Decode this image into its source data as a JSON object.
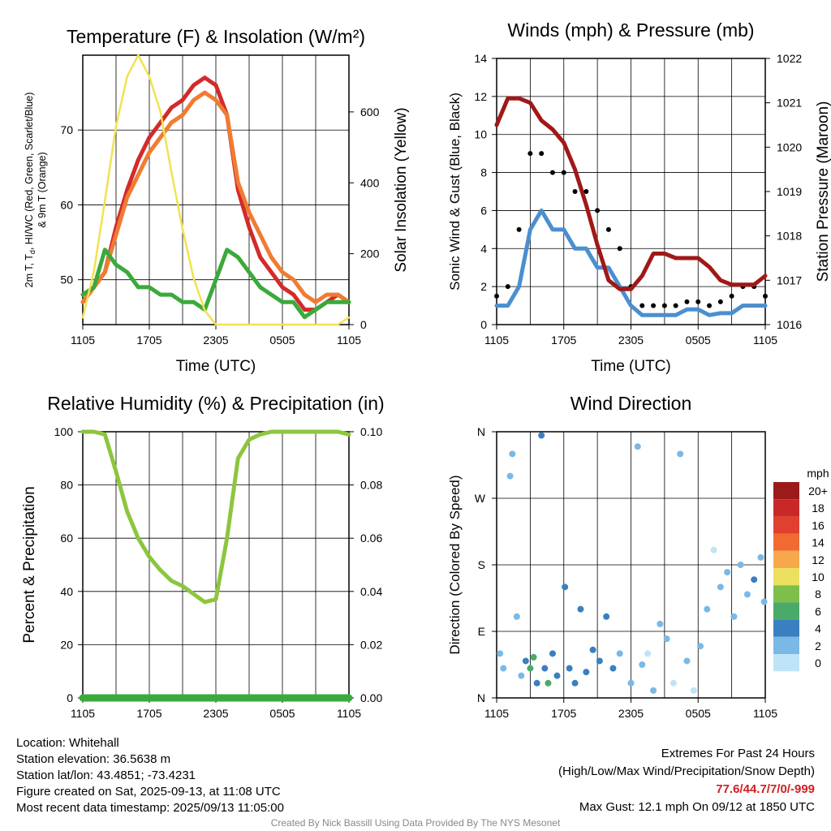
{
  "chart_data": [
    {
      "type": "line",
      "title": "Temperature (F) & Insolation (W/m²)",
      "ylabel": "2m T, Td, HI/WC (Red, Green, Scarlet/Blue) & 9m T (Orange)",
      "ylabel_line1": "2m T, T",
      "ylabel_sub": "d",
      "ylabel_line1_rest": ", HI/WC (Red, Green, Scarlet/Blue)",
      "ylabel_line2": "& 9m T (Orange)",
      "ylabel_right": "Solar Insolation (Yellow)",
      "xlabel": "Time (UTC)",
      "x_ticks": [
        "1105",
        "1705",
        "2305",
        "0505",
        "1105"
      ],
      "ylim": [
        44,
        80
      ],
      "y_ticks": [
        50,
        60,
        70
      ],
      "ylim_right": [
        0,
        760
      ],
      "y_ticks_right": [
        0,
        200,
        400,
        600
      ],
      "x_hours": [
        0,
        1,
        2,
        3,
        4,
        5,
        6,
        7,
        8,
        9,
        10,
        11,
        12,
        13,
        14,
        15,
        16,
        17,
        18,
        19,
        20,
        21,
        22,
        23,
        24
      ],
      "series": [
        {
          "name": "2m T",
          "color": "#d42a2a",
          "values": [
            47,
            49,
            51,
            57,
            62,
            66,
            69,
            71,
            73,
            74,
            76,
            77,
            76,
            72,
            62,
            57,
            53,
            51,
            49,
            48,
            46,
            46,
            47,
            48,
            47
          ]
        },
        {
          "name": "9m T",
          "color": "#f07b32",
          "values": [
            47,
            49,
            51,
            56,
            61,
            64,
            67,
            69,
            71,
            72,
            74,
            75,
            74,
            72,
            63,
            59,
            56,
            53,
            51,
            50,
            48,
            47,
            48,
            48,
            47
          ]
        },
        {
          "name": "Td",
          "color": "#3aaa3a",
          "values": [
            48,
            49,
            54,
            52,
            51,
            49,
            49,
            48,
            48,
            47,
            47,
            46,
            50,
            54,
            53,
            51,
            49,
            48,
            47,
            47,
            45,
            46,
            47,
            47,
            47
          ]
        },
        {
          "name": "Solar Insolation",
          "color": "#f2e250",
          "axis": "right",
          "values": [
            20,
            150,
            350,
            560,
            700,
            760,
            700,
            600,
            430,
            270,
            130,
            40,
            0,
            0,
            0,
            0,
            0,
            0,
            0,
            0,
            0,
            0,
            0,
            0,
            20
          ]
        }
      ]
    },
    {
      "type": "line",
      "title": "Winds (mph) & Pressure (mb)",
      "ylabel": "Sonic Wind & Gust (Blue, Black)",
      "ylabel_right": "Station Pressure (Maroon)",
      "xlabel": "Time (UTC)",
      "x_ticks": [
        "1105",
        "1705",
        "2305",
        "0505",
        "1105"
      ],
      "ylim": [
        0,
        14
      ],
      "y_ticks": [
        0,
        2,
        4,
        6,
        8,
        10,
        12,
        14
      ],
      "ylim_right": [
        1016,
        1022
      ],
      "y_ticks_right": [
        1016,
        1017,
        1018,
        1019,
        1020,
        1021,
        1022
      ],
      "x_hours": [
        0,
        1,
        2,
        3,
        4,
        5,
        6,
        7,
        8,
        9,
        10,
        11,
        12,
        13,
        14,
        15,
        16,
        17,
        18,
        19,
        20,
        21,
        22,
        23,
        24
      ],
      "series": [
        {
          "name": "Sonic Wind",
          "color": "#4a8fd0",
          "values": [
            1,
            1,
            2,
            5,
            6,
            5,
            5,
            4,
            4,
            3,
            3,
            2,
            1,
            0.5,
            0.5,
            0.5,
            0.5,
            0.8,
            0.8,
            0.5,
            0.6,
            0.6,
            1,
            1,
            1
          ]
        },
        {
          "name": "Gust",
          "color": "#000000",
          "values": [
            1.5,
            2,
            5,
            9,
            9,
            8,
            8,
            7,
            7,
            6,
            5,
            4,
            2,
            1,
            1,
            1,
            1,
            1.2,
            1.2,
            1,
            1.2,
            1.5,
            2,
            2,
            1.5
          ]
        },
        {
          "name": "Station Pressure",
          "color": "#a01818",
          "axis": "right",
          "values": [
            1020.5,
            1021.1,
            1021.1,
            1021.0,
            1020.6,
            1020.4,
            1020.1,
            1019.5,
            1018.7,
            1017.8,
            1017.0,
            1016.8,
            1016.8,
            1017.1,
            1017.6,
            1017.6,
            1017.5,
            1017.5,
            1017.5,
            1017.3,
            1017.0,
            1016.9,
            1016.9,
            1016.9,
            1017.1
          ]
        }
      ]
    },
    {
      "type": "line",
      "title": "Relative Humidity (%) & Precipitation (in)",
      "ylabel": "Percent & Precipitation",
      "x_ticks": [
        "1105",
        "1705",
        "2305",
        "0505",
        "1105"
      ],
      "ylim": [
        0,
        100
      ],
      "y_ticks": [
        0,
        20,
        40,
        60,
        80,
        100
      ],
      "ylim_right": [
        0,
        0.1
      ],
      "y_ticks_right": [
        "0.00",
        "0.02",
        "0.04",
        "0.06",
        "0.08",
        "0.10"
      ],
      "x_hours": [
        0,
        1,
        2,
        3,
        4,
        5,
        6,
        7,
        8,
        9,
        10,
        11,
        12,
        13,
        14,
        15,
        16,
        17,
        18,
        19,
        20,
        21,
        22,
        23,
        24
      ],
      "series": [
        {
          "name": "Relative Humidity",
          "color": "#8cc63f",
          "values": [
            100,
            100,
            99,
            85,
            70,
            60,
            53,
            48,
            44,
            42,
            39,
            36,
            37,
            60,
            90,
            97,
            99,
            100,
            100,
            100,
            100,
            100,
            100,
            100,
            99
          ]
        },
        {
          "name": "Precipitation",
          "color": "#3aaa3a",
          "axis": "right",
          "values": [
            0,
            0,
            0,
            0,
            0,
            0,
            0,
            0,
            0,
            0,
            0,
            0,
            0,
            0,
            0,
            0,
            0,
            0,
            0,
            0,
            0,
            0,
            0,
            0,
            0
          ]
        }
      ]
    },
    {
      "type": "scatter",
      "title": "Wind Direction",
      "ylabel": "Direction (Colored By Speed)",
      "x_ticks": [
        "1105",
        "1705",
        "2305",
        "0505",
        "1105"
      ],
      "y_ticks": [
        "N",
        "E",
        "S",
        "W",
        "N"
      ],
      "ylim": [
        0,
        360
      ],
      "legend_title": "mph",
      "legend_labels": [
        "20+",
        "18",
        "16",
        "14",
        "12",
        "10",
        "8",
        "6",
        "4",
        "2",
        "0"
      ],
      "legend_colors": [
        "#9b1b1b",
        "#c82828",
        "#e04030",
        "#f06a32",
        "#f7a84a",
        "#ece060",
        "#7dbf4a",
        "#4aaa6a",
        "#3a80c0",
        "#7ab8e6",
        "#bfe4f7"
      ],
      "points": [
        {
          "x": 0.3,
          "dir": 60,
          "speed": 1
        },
        {
          "x": 0.6,
          "dir": 40,
          "speed": 1
        },
        {
          "x": 1.2,
          "dir": 300,
          "speed": 1
        },
        {
          "x": 1.4,
          "dir": 330,
          "speed": 1
        },
        {
          "x": 1.8,
          "dir": 110,
          "speed": 1
        },
        {
          "x": 2.2,
          "dir": 30,
          "speed": 2
        },
        {
          "x": 2.6,
          "dir": 50,
          "speed": 4
        },
        {
          "x": 3.0,
          "dir": 40,
          "speed": 6
        },
        {
          "x": 3.3,
          "dir": 55,
          "speed": 6
        },
        {
          "x": 3.6,
          "dir": 20,
          "speed": 3
        },
        {
          "x": 4.0,
          "dir": 355,
          "speed": 4
        },
        {
          "x": 4.3,
          "dir": 40,
          "speed": 4
        },
        {
          "x": 4.6,
          "dir": 20,
          "speed": 6
        },
        {
          "x": 5.0,
          "dir": 60,
          "speed": 4
        },
        {
          "x": 5.4,
          "dir": 30,
          "speed": 3
        },
        {
          "x": 6.1,
          "dir": 150,
          "speed": 3
        },
        {
          "x": 6.5,
          "dir": 40,
          "speed": 4
        },
        {
          "x": 7.0,
          "dir": 20,
          "speed": 4
        },
        {
          "x": 7.5,
          "dir": 120,
          "speed": 4
        },
        {
          "x": 8.0,
          "dir": 35,
          "speed": 4
        },
        {
          "x": 8.6,
          "dir": 65,
          "speed": 4
        },
        {
          "x": 9.2,
          "dir": 50,
          "speed": 3
        },
        {
          "x": 9.8,
          "dir": 110,
          "speed": 3
        },
        {
          "x": 10.4,
          "dir": 40,
          "speed": 3
        },
        {
          "x": 11.0,
          "dir": 60,
          "speed": 2
        },
        {
          "x": 12.0,
          "dir": 20,
          "speed": 1
        },
        {
          "x": 12.6,
          "dir": 340,
          "speed": 1
        },
        {
          "x": 13.0,
          "dir": 45,
          "speed": 1
        },
        {
          "x": 13.5,
          "dir": 60,
          "speed": 0
        },
        {
          "x": 14.0,
          "dir": 10,
          "speed": 1
        },
        {
          "x": 14.6,
          "dir": 100,
          "speed": 1
        },
        {
          "x": 15.2,
          "dir": 80,
          "speed": 1
        },
        {
          "x": 15.8,
          "dir": 20,
          "speed": 0
        },
        {
          "x": 16.4,
          "dir": 330,
          "speed": 1
        },
        {
          "x": 17.0,
          "dir": 50,
          "speed": 1
        },
        {
          "x": 17.6,
          "dir": 10,
          "speed": 0
        },
        {
          "x": 18.2,
          "dir": 70,
          "speed": 1
        },
        {
          "x": 18.8,
          "dir": 120,
          "speed": 1
        },
        {
          "x": 19.4,
          "dir": 200,
          "speed": 0
        },
        {
          "x": 20.0,
          "dir": 150,
          "speed": 1
        },
        {
          "x": 20.6,
          "dir": 170,
          "speed": 1
        },
        {
          "x": 21.2,
          "dir": 110,
          "speed": 2
        },
        {
          "x": 21.8,
          "dir": 180,
          "speed": 2
        },
        {
          "x": 22.4,
          "dir": 140,
          "speed": 2
        },
        {
          "x": 23.0,
          "dir": 160,
          "speed": 3
        },
        {
          "x": 23.6,
          "dir": 190,
          "speed": 2
        },
        {
          "x": 23.9,
          "dir": 130,
          "speed": 1
        }
      ]
    }
  ],
  "footer": {
    "location": "Location: Whitehall",
    "elevation": "Station elevation: 36.5638 m",
    "latlon": "Station lat/lon: 43.4851; -73.4231",
    "created": "Figure created on Sat, 2025-09-13, at 11:08 UTC",
    "recent": "Most recent data timestamp: 2025/09/13 11:05:00",
    "extremes_title": "Extremes For Past 24 Hours",
    "extremes_sub": "(High/Low/Max Wind/Precipitation/Snow Depth)",
    "extremes_values": "77.6/44.7/7/0/-999",
    "max_gust": "Max Gust: 12.1 mph On 09/12 at 1850 UTC",
    "credit": "Created By Nick Bassill Using Data Provided By The NYS Mesonet"
  }
}
